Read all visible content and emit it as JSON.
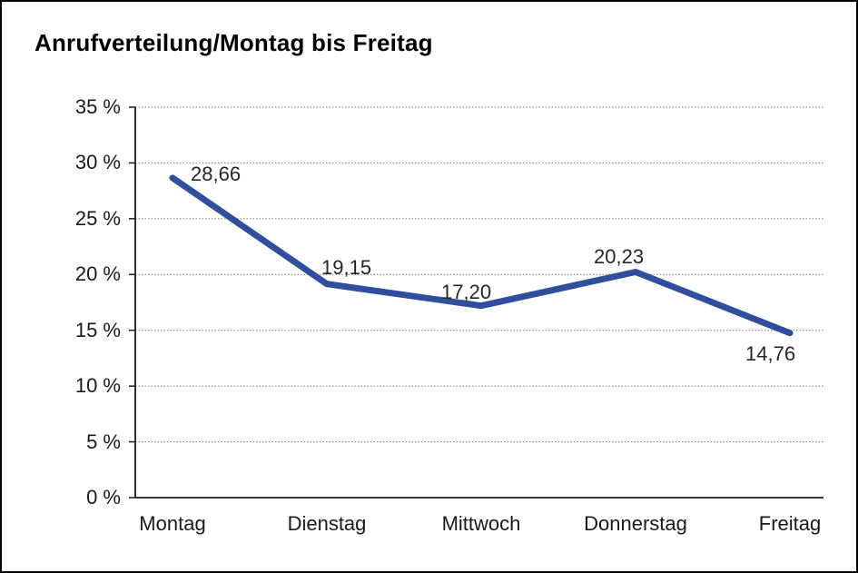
{
  "title": "Anrufverteilung/Montag bis Freitag",
  "chart_data": {
    "type": "line",
    "title": "Anrufverteilung/Montag bis Freitag",
    "categories": [
      "Montag",
      "Dienstag",
      "Mittwoch",
      "Donnerstag",
      "Freitag"
    ],
    "values": [
      28.66,
      19.15,
      17.2,
      20.23,
      14.76
    ],
    "value_labels": [
      "28,66",
      "19,15",
      "17,20",
      "20,23",
      "14,76"
    ],
    "xlabel": "",
    "ylabel": "",
    "ylim": [
      0,
      35
    ],
    "ytick_step": 5,
    "ytick_labels": [
      "0 %",
      "5 %",
      "10 %",
      "15 %",
      "20 %",
      "25 %",
      "30 %",
      "35 %"
    ],
    "grid": "horizontal-dotted",
    "legend": "none",
    "colors": {
      "line": "#2F4E9D",
      "axis": "#1a1a1a",
      "gridline": "#7a7a7a",
      "text": "#1a1a1a",
      "background": "#ffffff",
      "frame_border": "#000000"
    }
  }
}
